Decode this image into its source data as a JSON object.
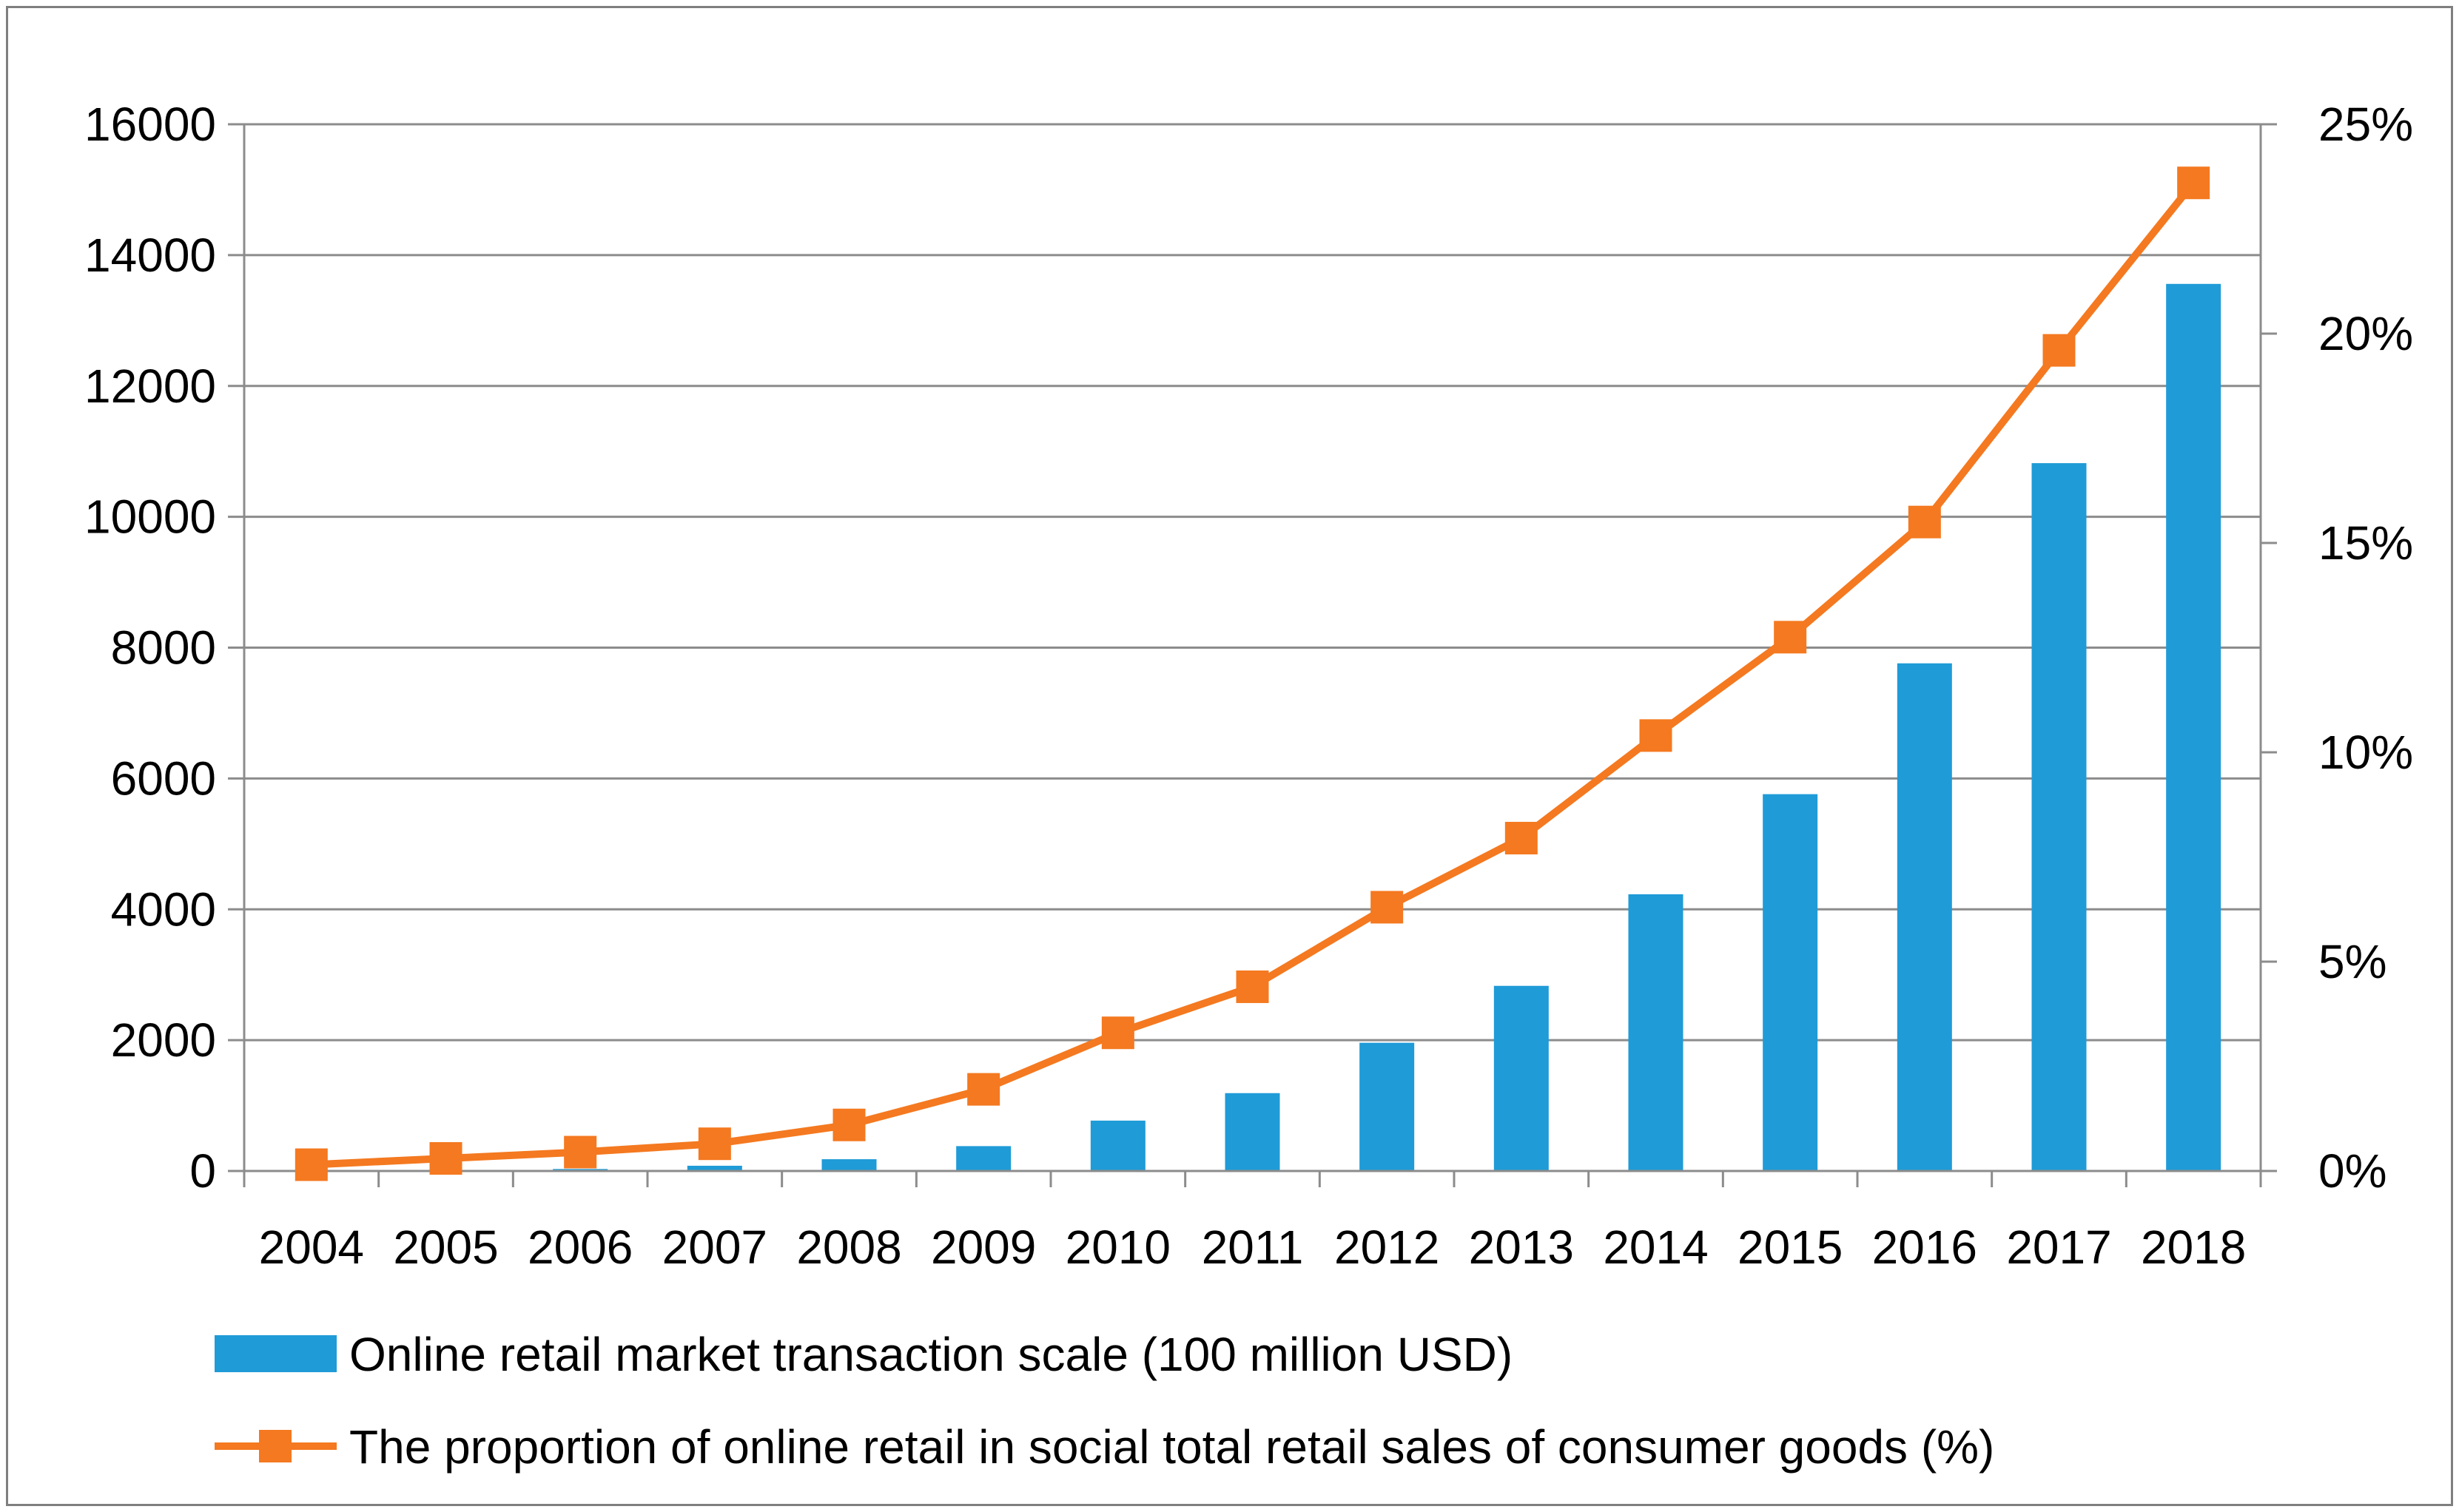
{
  "chart_data": {
    "type": "bar+line",
    "title": "",
    "xlabel": "",
    "categories": [
      "2004",
      "2005",
      "2006",
      "2007",
      "2008",
      "2009",
      "2010",
      "2011",
      "2012",
      "2013",
      "2014",
      "2015",
      "2016",
      "2017",
      "2018"
    ],
    "series": [
      {
        "name": "Online retail market transaction scale (100 million USD)",
        "type": "bar",
        "axis": "left",
        "color": "#1f9bd7",
        "values": [
          5,
          10,
          30,
          80,
          180,
          380,
          770,
          1190,
          1960,
          2830,
          4230,
          5760,
          7760,
          10820,
          13560
        ]
      },
      {
        "name": "The proportion of online retail in social total retail sales of consumer goods (%)",
        "type": "line",
        "axis": "right",
        "color": "#f47920",
        "values": [
          0.15,
          0.3,
          0.45,
          0.65,
          1.1,
          1.95,
          3.3,
          4.4,
          6.3,
          7.95,
          10.4,
          12.75,
          15.5,
          19.6,
          23.6
        ]
      }
    ],
    "y_left": {
      "min": 0,
      "max": 16000,
      "ticks": [
        "0",
        "2000",
        "4000",
        "6000",
        "8000",
        "10000",
        "12000",
        "14000",
        "16000"
      ]
    },
    "y_right": {
      "min": 0,
      "max": 25,
      "ticks": [
        "0%",
        "5%",
        "10%",
        "15%",
        "20%",
        "25%"
      ]
    },
    "grid": true,
    "legend_position": "bottom-left"
  }
}
